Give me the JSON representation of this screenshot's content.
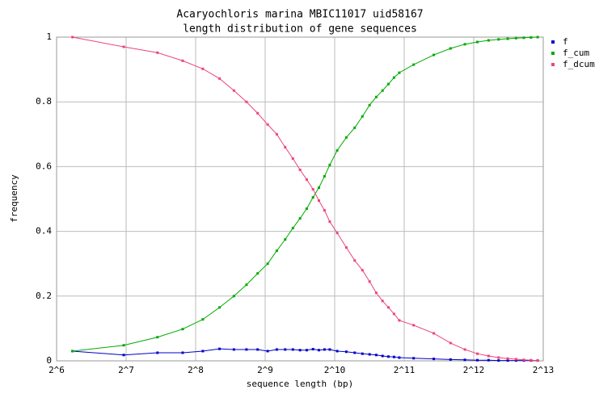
{
  "chart_data": {
    "type": "line",
    "title": "Acaryochloris marina MBIC11017 uid58167",
    "subtitle": "length distribution of gene sequences",
    "x_label": "sequence length (bp)",
    "y_label": "frequency",
    "x_scale": "log2",
    "grid": true,
    "legend": "right",
    "xlim": [
      64,
      8192
    ],
    "xticks": [
      {
        "value": 64,
        "label": "2^6"
      },
      {
        "value": 128,
        "label": "2^7"
      },
      {
        "value": 256,
        "label": "2^8"
      },
      {
        "value": 512,
        "label": "2^9"
      },
      {
        "value": 1024,
        "label": "2^10"
      },
      {
        "value": 2048,
        "label": "2^11"
      },
      {
        "value": 4096,
        "label": "2^12"
      },
      {
        "value": 8192,
        "label": "2^13"
      }
    ],
    "ylim": [
      0,
      1
    ],
    "yticks": [
      0,
      0.2,
      0.4,
      0.6,
      0.8,
      1
    ],
    "x": [
      75,
      125,
      175,
      225,
      275,
      325,
      375,
      425,
      475,
      525,
      575,
      625,
      675,
      725,
      775,
      825,
      875,
      925,
      975,
      1050,
      1150,
      1250,
      1350,
      1450,
      1550,
      1650,
      1750,
      1850,
      1950,
      2250,
      2750,
      3250,
      3750,
      4250,
      4750,
      5250,
      5750,
      6250,
      6750,
      7250,
      7750
    ],
    "series": [
      {
        "name": "f",
        "color": "#0000cc",
        "values": [
          0.03,
          0.018,
          0.025,
          0.025,
          0.03,
          0.037,
          0.035,
          0.035,
          0.035,
          0.03,
          0.035,
          0.035,
          0.035,
          0.033,
          0.033,
          0.036,
          0.033,
          0.035,
          0.035,
          0.03,
          0.028,
          0.025,
          0.022,
          0.02,
          0.018,
          0.015,
          0.013,
          0.012,
          0.01,
          0.008,
          0.006,
          0.004,
          0.003,
          0.002,
          0.002,
          0.001,
          0.001,
          0.001,
          0.001,
          0.001,
          0.001
        ]
      },
      {
        "name": "f_cum",
        "color": "#00aa00",
        "values": [
          0.03,
          0.048,
          0.073,
          0.098,
          0.128,
          0.165,
          0.2,
          0.235,
          0.27,
          0.3,
          0.34,
          0.375,
          0.41,
          0.44,
          0.47,
          0.505,
          0.535,
          0.57,
          0.605,
          0.65,
          0.69,
          0.72,
          0.755,
          0.79,
          0.815,
          0.835,
          0.855,
          0.875,
          0.89,
          0.915,
          0.945,
          0.965,
          0.978,
          0.985,
          0.99,
          0.993,
          0.995,
          0.997,
          0.998,
          0.999,
          1.0
        ]
      },
      {
        "name": "f_dcum",
        "color": "#ee4477",
        "values": [
          1,
          0.97,
          0.952,
          0.927,
          0.902,
          0.872,
          0.835,
          0.8,
          0.765,
          0.73,
          0.7,
          0.66,
          0.625,
          0.59,
          0.56,
          0.53,
          0.495,
          0.465,
          0.43,
          0.395,
          0.35,
          0.31,
          0.28,
          0.245,
          0.21,
          0.185,
          0.165,
          0.145,
          0.125,
          0.11,
          0.085,
          0.055,
          0.035,
          0.022,
          0.015,
          0.01,
          0.007,
          0.005,
          0.003,
          0.002,
          0.001
        ]
      }
    ]
  }
}
